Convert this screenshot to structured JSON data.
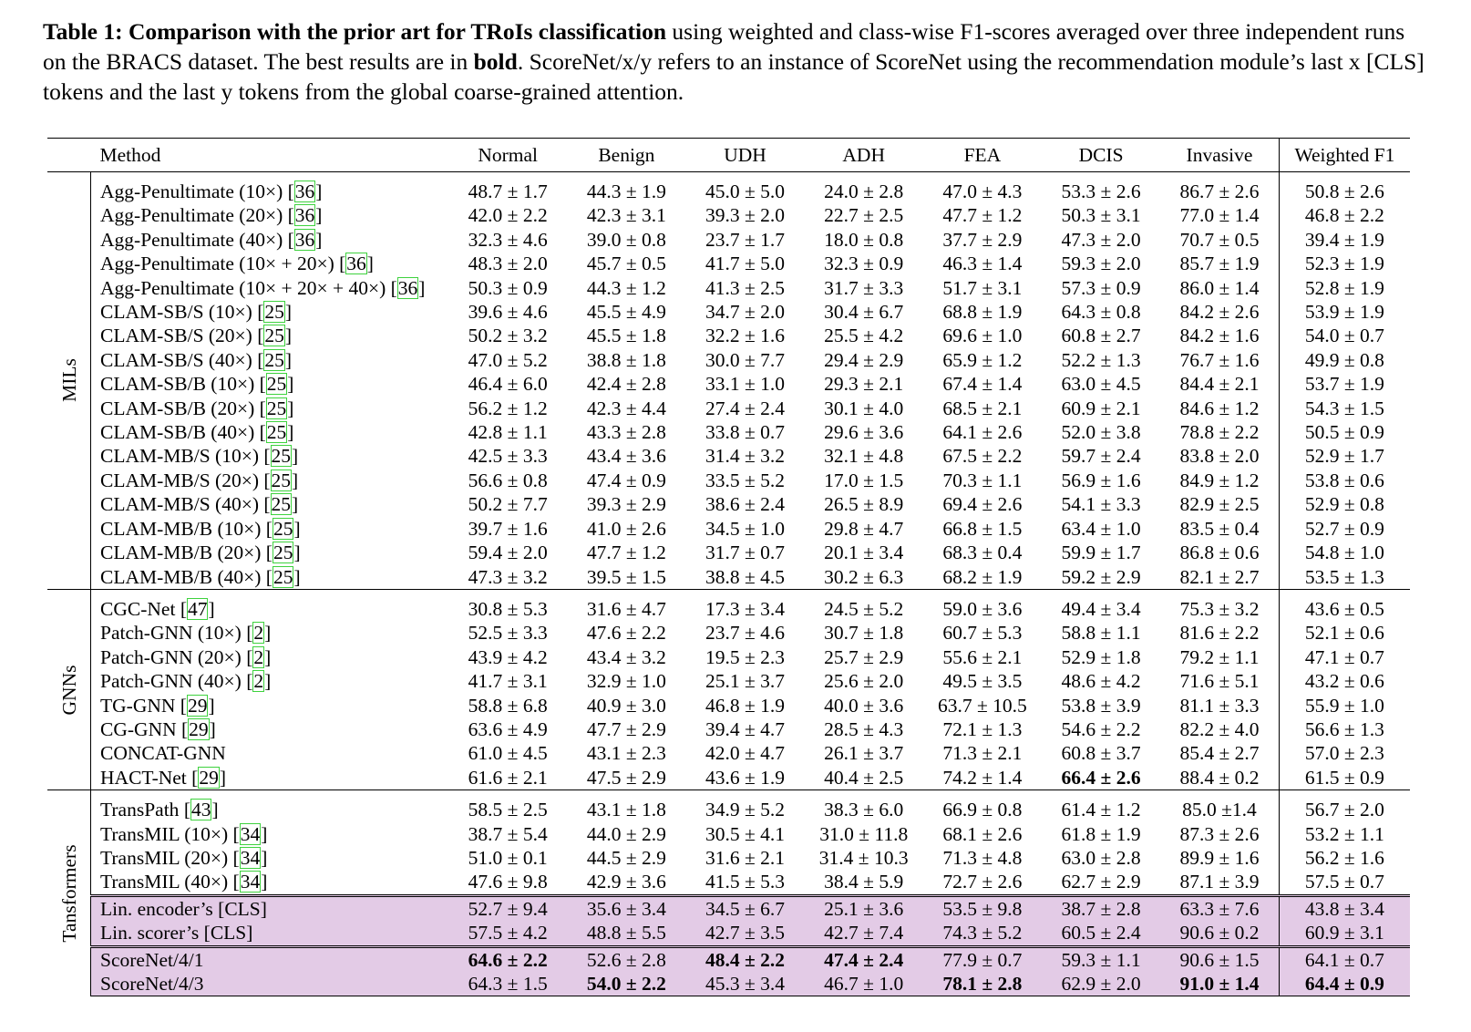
{
  "caption": {
    "label": "Table 1:",
    "bold_title": "Comparison with the prior art for TRoIs classification",
    "text1": " using weighted and class-wise F1-scores averaged over three independent runs on the BRACS dataset. The best results are in ",
    "bold_word": "bold",
    "text2": ". ScoreNet/x/y refers to an instance of ScoreNet using the recommendation module’s last x [CLS] tokens and the last y tokens from the global coarse-grained attention."
  },
  "table": {
    "headers": [
      "Method",
      "Normal",
      "Benign",
      "UDH",
      "ADH",
      "FEA",
      "DCIS",
      "Invasive",
      "Weighted F1"
    ],
    "groups": [
      {
        "name": "MILs",
        "rows": [
          {
            "method": "Agg-Penultimate (10×) ",
            "ref": "36",
            "cells": [
              "48.7 ± 1.7",
              "44.3 ± 1.9",
              "45.0 ± 5.0",
              "24.0 ± 2.8",
              "47.0 ± 4.3",
              "53.3 ± 2.6",
              "86.7 ± 2.6",
              "50.8 ± 2.6"
            ]
          },
          {
            "method": "Agg-Penultimate (20×) ",
            "ref": "36",
            "cells": [
              "42.0 ± 2.2",
              "42.3 ± 3.1",
              "39.3 ± 2.0",
              "22.7 ± 2.5",
              "47.7 ± 1.2",
              "50.3 ± 3.1",
              "77.0 ± 1.4",
              "46.8 ± 2.2"
            ]
          },
          {
            "method": "Agg-Penultimate (40×) ",
            "ref": "36",
            "cells": [
              "32.3 ± 4.6",
              "39.0 ± 0.8",
              "23.7 ± 1.7",
              "18.0 ± 0.8",
              "37.7 ± 2.9",
              "47.3 ± 2.0",
              "70.7 ± 0.5",
              "39.4 ± 1.9"
            ]
          },
          {
            "method": "Agg-Penultimate (10× + 20×) ",
            "ref": "36",
            "cells": [
              "48.3 ± 2.0",
              "45.7 ± 0.5",
              "41.7 ± 5.0",
              "32.3 ± 0.9",
              "46.3 ± 1.4",
              "59.3 ± 2.0",
              "85.7 ± 1.9",
              "52.3 ± 1.9"
            ]
          },
          {
            "method": "Agg-Penultimate (10× + 20× + 40×) ",
            "ref": "36",
            "cells": [
              "50.3 ± 0.9",
              "44.3 ± 1.2",
              "41.3 ± 2.5",
              "31.7 ± 3.3",
              "51.7 ± 3.1",
              "57.3 ± 0.9",
              "86.0 ± 1.4",
              "52.8 ± 1.9"
            ]
          },
          {
            "method": "CLAM-SB/S (10×) ",
            "ref": "25",
            "cells": [
              "39.6 ± 4.6",
              "45.5 ± 4.9",
              "34.7 ± 2.0",
              "30.4 ± 6.7",
              "68.8 ± 1.9",
              "64.3 ± 0.8",
              "84.2 ± 2.6",
              "53.9 ± 1.9"
            ]
          },
          {
            "method": "CLAM-SB/S (20×) ",
            "ref": "25",
            "cells": [
              "50.2 ± 3.2",
              "45.5 ± 1.8",
              "32.2 ± 1.6",
              "25.5 ± 4.2",
              "69.6 ± 1.0",
              "60.8 ± 2.7",
              "84.2 ± 1.6",
              "54.0 ± 0.7"
            ]
          },
          {
            "method": "CLAM-SB/S (40×) ",
            "ref": "25",
            "cells": [
              "47.0 ± 5.2",
              "38.8 ± 1.8",
              "30.0 ± 7.7",
              "29.4 ± 2.9",
              "65.9 ± 1.2",
              "52.2 ± 1.3",
              "76.7 ± 1.6",
              "49.9 ± 0.8"
            ]
          },
          {
            "method": "CLAM-SB/B (10×) ",
            "ref": "25",
            "cells": [
              "46.4 ± 6.0",
              "42.4 ± 2.8",
              "33.1 ± 1.0",
              "29.3 ± 2.1",
              "67.4 ± 1.4",
              "63.0 ± 4.5",
              "84.4 ± 2.1",
              "53.7 ± 1.9"
            ]
          },
          {
            "method": "CLAM-SB/B (20×) ",
            "ref": "25",
            "cells": [
              "56.2 ± 1.2",
              "42.3 ± 4.4",
              "27.4 ± 2.4",
              "30.1 ± 4.0",
              "68.5 ± 2.1",
              "60.9 ± 2.1",
              "84.6 ± 1.2",
              "54.3 ± 1.5"
            ]
          },
          {
            "method": "CLAM-SB/B (40×) ",
            "ref": "25",
            "cells": [
              "42.8 ± 1.1",
              "43.3 ± 2.8",
              "33.8 ± 0.7",
              "29.6 ± 3.6",
              "64.1 ± 2.6",
              "52.0 ± 3.8",
              "78.8 ± 2.2",
              "50.5 ± 0.9"
            ]
          },
          {
            "method": "CLAM-MB/S (10×) ",
            "ref": "25",
            "cells": [
              "42.5 ± 3.3",
              "43.4 ± 3.6",
              "31.4 ± 3.2",
              "32.1 ± 4.8",
              "67.5 ± 2.2",
              "59.7 ± 2.4",
              "83.8 ± 2.0",
              "52.9 ± 1.7"
            ]
          },
          {
            "method": "CLAM-MB/S (20×) ",
            "ref": "25",
            "cells": [
              "56.6 ± 0.8",
              "47.4 ± 0.9",
              "33.5 ± 5.2",
              "17.0 ± 1.5",
              "70.3 ± 1.1",
              "56.9 ± 1.6",
              "84.9 ± 1.2",
              "53.8 ± 0.6"
            ]
          },
          {
            "method": "CLAM-MB/S (40×) ",
            "ref": "25",
            "cells": [
              "50.2 ± 7.7",
              "39.3 ± 2.9",
              "38.6 ± 2.4",
              "26.5 ± 8.9",
              "69.4 ± 2.6",
              "54.1 ± 3.3",
              "82.9 ± 2.5",
              "52.9 ± 0.8"
            ]
          },
          {
            "method": "CLAM-MB/B (10×) ",
            "ref": "25",
            "cells": [
              "39.7 ± 1.6",
              "41.0 ± 2.6",
              "34.5 ± 1.0",
              "29.8 ± 4.7",
              "66.8 ± 1.5",
              "63.4 ± 1.0",
              "83.5 ± 0.4",
              "52.7 ± 0.9"
            ]
          },
          {
            "method": "CLAM-MB/B (20×) ",
            "ref": "25",
            "cells": [
              "59.4 ± 2.0",
              "47.7 ± 1.2",
              "31.7 ± 0.7",
              "20.1 ± 3.4",
              "68.3 ± 0.4",
              "59.9 ± 1.7",
              "86.8 ± 0.6",
              "54.8 ± 1.0"
            ]
          },
          {
            "method": "CLAM-MB/B (40×) ",
            "ref": "25",
            "cells": [
              "47.3 ± 3.2",
              "39.5 ± 1.5",
              "38.8 ± 4.5",
              "30.2 ± 6.3",
              "68.2 ± 1.9",
              "59.2 ± 2.9",
              "82.1 ± 2.7",
              "53.5 ± 1.3"
            ]
          }
        ]
      },
      {
        "name": "GNNs",
        "rows": [
          {
            "method": "CGC-Net ",
            "ref": "47",
            "cells": [
              "30.8 ± 5.3",
              "31.6 ± 4.7",
              "17.3 ± 3.4",
              "24.5 ± 5.2",
              "59.0 ± 3.6",
              "49.4 ± 3.4",
              "75.3 ± 3.2",
              "43.6 ± 0.5"
            ]
          },
          {
            "method": "Patch-GNN (10×) ",
            "ref": "2",
            "cells": [
              "52.5 ± 3.3",
              "47.6 ± 2.2",
              "23.7 ± 4.6",
              "30.7 ± 1.8",
              "60.7 ± 5.3",
              "58.8 ± 1.1",
              "81.6 ± 2.2",
              "52.1 ± 0.6"
            ]
          },
          {
            "method": "Patch-GNN (20×) ",
            "ref": "2",
            "cells": [
              "43.9 ± 4.2",
              "43.4 ± 3.2",
              "19.5 ± 2.3",
              "25.7 ± 2.9",
              "55.6 ± 2.1",
              "52.9 ± 1.8",
              "79.2 ± 1.1",
              "47.1 ± 0.7"
            ]
          },
          {
            "method": "Patch-GNN (40×) ",
            "ref": "2",
            "cells": [
              "41.7 ± 3.1",
              "32.9 ± 1.0",
              "25.1 ± 3.7",
              "25.6 ± 2.0",
              "49.5 ± 3.5",
              "48.6 ± 4.2",
              "71.6 ± 5.1",
              "43.2 ± 0.6"
            ]
          },
          {
            "method": "TG-GNN ",
            "ref": "29",
            "cells": [
              "58.8 ± 6.8",
              "40.9 ± 3.0",
              "46.8 ± 1.9",
              "40.0 ± 3.6",
              "63.7 ± 10.5",
              "53.8 ± 3.9",
              "81.1 ± 3.3",
              "55.9 ± 1.0"
            ]
          },
          {
            "method": "CG-GNN ",
            "ref": "29",
            "cells": [
              "63.6 ± 4.9",
              "47.7 ± 2.9",
              "39.4 ± 4.7",
              "28.5 ± 4.3",
              "72.1 ± 1.3",
              "54.6 ± 2.2",
              "82.2 ± 4.0",
              "56.6 ± 1.3"
            ]
          },
          {
            "method": "CONCAT-GNN",
            "ref": "",
            "cells": [
              "61.0 ± 4.5",
              "43.1 ± 2.3",
              "42.0 ± 4.7",
              "26.1 ± 3.7",
              "71.3 ± 2.1",
              "60.8 ± 3.7",
              "85.4 ± 2.7",
              "57.0 ± 2.3"
            ]
          },
          {
            "method": "HACT-Net ",
            "ref": "29",
            "cells": [
              "61.6 ± 2.1",
              "47.5 ± 2.9",
              "43.6 ± 1.9",
              "40.4 ± 2.5",
              "74.2 ± 1.4",
              "66.4 ± 2.6",
              "88.4 ± 0.2",
              "61.5 ± 0.9"
            ],
            "bold": [
              5
            ]
          }
        ]
      },
      {
        "name": "Tansformers",
        "rows": [
          {
            "method": "TransPath ",
            "ref": "43",
            "cells": [
              "58.5 ± 2.5",
              "43.1 ± 1.8",
              "34.9 ± 5.2",
              "38.3 ± 6.0",
              "66.9 ± 0.8",
              "61.4 ± 1.2",
              "85.0 ±1.4",
              "56.7 ± 2.0"
            ]
          },
          {
            "method": "TransMIL (10×) ",
            "ref": "34",
            "cells": [
              "38.7 ± 5.4",
              "44.0 ± 2.9",
              "30.5 ± 4.1",
              "31.0 ± 11.8",
              "68.1 ± 2.6",
              "61.8 ± 1.9",
              "87.3 ± 2.6",
              "53.2 ± 1.1"
            ]
          },
          {
            "method": "TransMIL (20×) ",
            "ref": "34",
            "cells": [
              "51.0 ± 0.1",
              "44.5 ± 2.9",
              "31.6 ± 2.1",
              "31.4 ± 10.3",
              "71.3 ± 4.8",
              "63.0 ± 2.8",
              "89.9 ± 1.6",
              "56.2 ± 1.6"
            ]
          },
          {
            "method": "TransMIL (40×) ",
            "ref": "34",
            "cells": [
              "47.6 ± 9.8",
              "42.9 ± 3.6",
              "41.5 ± 5.3",
              "38.4 ± 5.9",
              "72.7 ± 2.6",
              "62.7 ± 2.9",
              "87.1 ± 3.9",
              "57.5 ± 0.7"
            ]
          },
          {
            "method": "Lin. encoder’s [CLS]",
            "ref": "",
            "hl": true,
            "dbl": true,
            "cells": [
              "52.7 ± 9.4",
              "35.6 ± 3.4",
              "34.5 ± 6.7",
              "25.1 ± 3.6",
              "53.5 ± 9.8",
              "38.7 ± 2.8",
              "63.3 ± 7.6",
              "43.8 ± 3.4"
            ]
          },
          {
            "method": "Lin. scorer’s [CLS]",
            "ref": "",
            "hl": true,
            "cells": [
              "57.5 ± 4.2",
              "48.8 ± 5.5",
              "42.7 ± 3.5",
              "42.7 ± 7.4",
              "74.3 ± 5.2",
              "60.5 ± 2.4",
              "90.6 ± 0.2",
              "60.9 ± 3.1"
            ]
          },
          {
            "method": "ScoreNet/4/1",
            "ref": "",
            "hl": true,
            "dbl": true,
            "cells": [
              "64.6 ± 2.2",
              "52.6 ± 2.8",
              "48.4 ± 2.2",
              "47.4 ± 2.4",
              "77.9 ± 0.7",
              "59.3 ± 1.1",
              "90.6 ± 1.5",
              "64.1 ± 0.7"
            ],
            "bold": [
              0,
              2,
              3
            ]
          },
          {
            "method": "ScoreNet/4/3",
            "ref": "",
            "hl": true,
            "cells": [
              "64.3 ± 1.5",
              "54.0 ± 2.2",
              "45.3 ± 3.4",
              "46.7 ± 1.0",
              "78.1 ± 2.8",
              "62.9 ± 2.0",
              "91.0 ± 1.4",
              "64.4 ± 0.9"
            ],
            "bold": [
              1,
              4,
              6,
              7
            ]
          }
        ]
      }
    ]
  },
  "colors": {
    "highlight": "#e3cbe6",
    "ref_box": "#3ed23e"
  }
}
